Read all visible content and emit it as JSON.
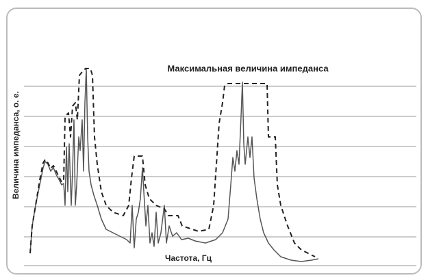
{
  "chart_data": {
    "type": "line",
    "title": "Максимальная величина импеданса",
    "y_label": "Величина импеданса, о. е.",
    "x_label": "Частота, Гц",
    "xlim": [
      0,
      573
    ],
    "ylim": [
      0,
      293
    ],
    "yticks": [
      0,
      42,
      86,
      130,
      174,
      218,
      262
    ],
    "grid": true,
    "series": [
      {
        "color": "#555555",
        "style": "solid",
        "x": [
          9,
          12,
          17,
          23,
          28,
          31,
          35,
          39,
          43,
          47,
          51,
          55,
          58,
          60,
          62,
          64,
          66,
          69,
          71,
          73,
          75,
          77,
          80,
          82,
          85,
          87,
          89,
          91,
          93,
          95,
          98,
          102,
          107,
          113,
          120,
          130,
          140,
          150,
          155,
          158,
          161,
          164,
          167,
          170,
          173,
          175,
          178,
          181,
          184,
          187,
          190,
          193,
          196,
          200,
          205,
          208,
          212,
          217,
          223,
          230,
          240,
          250,
          265,
          280,
          290,
          298,
          302,
          305,
          308,
          311,
          314,
          317,
          319,
          321,
          323,
          327,
          330,
          333,
          336,
          340,
          345,
          350,
          357,
          365,
          375,
          390,
          405,
          420,
          430
        ],
        "values": [
          18,
          58,
          88,
          118,
          143,
          152,
          148,
          138,
          143,
          133,
          126,
          118,
          120,
          88,
          173,
          108,
          178,
          88,
          138,
          213,
          88,
          118,
          188,
          168,
          213,
          138,
          238,
          288,
          188,
          138,
          118,
          103,
          88,
          68,
          53,
          48,
          43,
          38,
          33,
          88,
          26,
          68,
          78,
          98,
          143,
          108,
          58,
          88,
          33,
          48,
          28,
          78,
          33,
          48,
          88,
          33,
          58,
          43,
          48,
          38,
          40,
          36,
          33,
          38,
          48,
          68,
          118,
          158,
          138,
          168,
          148,
          218,
          268,
          178,
          148,
          188,
          158,
          188,
          128,
          98,
          68,
          48,
          33,
          23,
          13,
          8,
          6,
          8,
          10
        ]
      },
      {
        "color": "#222222",
        "style": "dashed",
        "x": [
          9,
          12,
          17,
          23,
          28,
          31,
          35,
          39,
          43,
          47,
          51,
          55,
          58,
          60,
          65,
          68,
          71,
          75,
          78,
          81,
          85,
          90,
          97,
          100,
          103,
          107,
          113,
          120,
          130,
          145,
          153,
          157,
          161,
          173,
          177,
          183,
          193,
          205,
          211,
          225,
          231,
          240,
          255,
          270,
          277,
          285,
          290,
          293,
          298,
          315,
          320,
          340,
          355,
          357,
          367,
          370,
          375,
          385,
          395,
          405,
          415,
          425
        ],
        "values": [
          18,
          58,
          88,
          125,
          150,
          155,
          150,
          142,
          146,
          138,
          130,
          122,
          124,
          218,
          223,
          188,
          233,
          238,
          213,
          278,
          283,
          288,
          288,
          278,
          188,
          148,
          108,
          88,
          78,
          73,
          88,
          128,
          160,
          160,
          118,
          98,
          88,
          83,
          73,
          73,
          58,
          55,
          50,
          53,
          88,
          208,
          238,
          263,
          266,
          266,
          266,
          266,
          266,
          188,
          188,
          118,
          88,
          58,
          33,
          23,
          18,
          13
        ]
      }
    ]
  }
}
